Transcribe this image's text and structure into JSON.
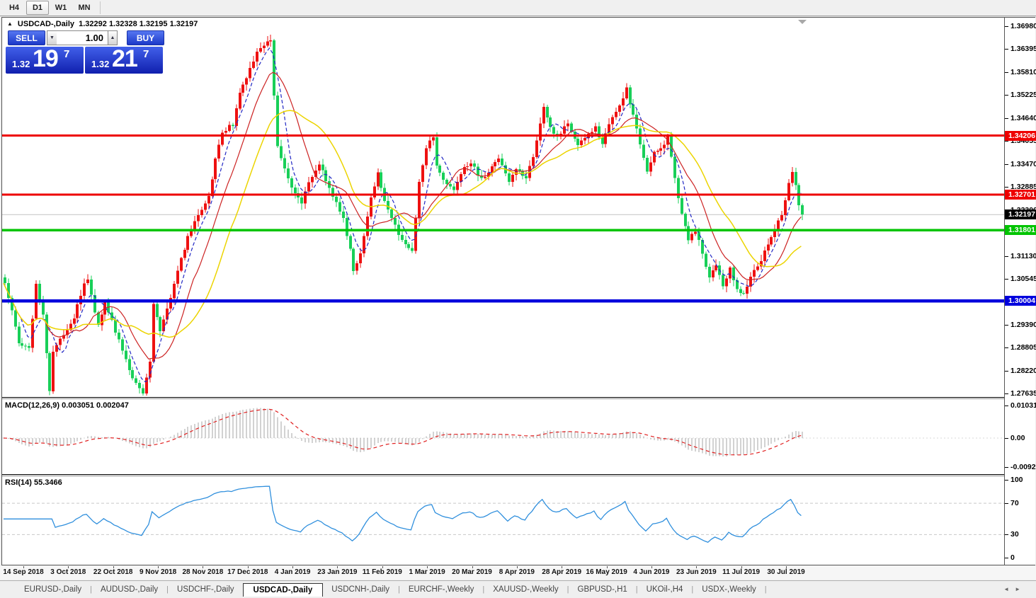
{
  "toolbar": {
    "timeframes": [
      {
        "label": "H4",
        "active": false
      },
      {
        "label": "D1",
        "active": true
      },
      {
        "label": "W1",
        "active": false
      },
      {
        "label": "MN",
        "active": false
      }
    ]
  },
  "chart": {
    "title": "USDCAD-,Daily",
    "ohlc_text": "1.32292 1.32328 1.32195 1.32197"
  },
  "trade_panel": {
    "sell_label": "SELL",
    "buy_label": "BUY",
    "volume": "1.00",
    "sell_price": {
      "prefix": "1.32",
      "big": "19",
      "sup": "7"
    },
    "buy_price": {
      "prefix": "1.32",
      "big": "21",
      "sup": "7"
    }
  },
  "price_axis": {
    "labels": [
      "1.36980",
      "1.36395",
      "1.35810",
      "1.35225",
      "1.34640",
      "1.34055",
      "1.33470",
      "1.32885",
      "1.32300",
      "1.31715",
      "1.31130",
      "1.30545",
      "1.29960",
      "1.29390",
      "1.28805",
      "1.28220",
      "1.27635"
    ],
    "badges": [
      {
        "value": "1.34206",
        "color": "#ee0000"
      },
      {
        "value": "1.32701",
        "color": "#ee0000"
      },
      {
        "value": "1.32197",
        "color": "#000000"
      },
      {
        "value": "1.31801",
        "color": "#00c400"
      },
      {
        "value": "1.30004",
        "color": "#0000dd"
      }
    ]
  },
  "indicators": {
    "macd": {
      "label": "MACD(12,26,9) 0.003051 0.002047",
      "axis": [
        "0.010311",
        "0.00",
        "-0.009203"
      ]
    },
    "rsi": {
      "label": "RSI(14) 55.3466",
      "axis": [
        "100",
        "70",
        "30",
        "0"
      ]
    }
  },
  "time_axis": {
    "labels": [
      "14 Sep 2018",
      "3 Oct 2018",
      "22 Oct 2018",
      "9 Nov 2018",
      "28 Nov 2018",
      "17 Dec 2018",
      "4 Jan 2019",
      "23 Jan 2019",
      "11 Feb 2019",
      "1 Mar 2019",
      "20 Mar 2019",
      "8 Apr 2019",
      "28 Apr 2019",
      "16 May 2019",
      "4 Jun 2019",
      "23 Jun 2019",
      "11 Jul 2019",
      "30 Jul 2019"
    ]
  },
  "tabs": [
    {
      "label": "EURUSD-,Daily",
      "active": false
    },
    {
      "label": "AUDUSD-,Daily",
      "active": false
    },
    {
      "label": "USDCHF-,Daily",
      "active": false
    },
    {
      "label": "USDCAD-,Daily",
      "active": true
    },
    {
      "label": "USDCNH-,Daily",
      "active": false
    },
    {
      "label": "EURCHF-,Weekly",
      "active": false
    },
    {
      "label": "XAUUSD-,Weekly",
      "active": false
    },
    {
      "label": "GBPUSD-,H1",
      "active": false
    },
    {
      "label": "UKOil-,H4",
      "active": false
    },
    {
      "label": "USDX-,Weekly",
      "active": false
    }
  ],
  "chart_data": {
    "type": "candlestick",
    "symbol": "USDCAD-",
    "timeframe": "Daily",
    "ohlc": {
      "open": 1.32292,
      "high": 1.32328,
      "low": 1.32195,
      "close": 1.32197
    },
    "bars": 232,
    "seed": 20190806,
    "bull_color": "#ee1111",
    "bear_color": "#18cf58",
    "y_axis": {
      "min": 1.27635,
      "max": 1.3698
    },
    "current_price": 1.32197,
    "price_path": [
      [
        0,
        1.3045
      ],
      [
        2,
        1.2975
      ],
      [
        4,
        1.289
      ],
      [
        7,
        1.288
      ],
      [
        9,
        1.304
      ],
      [
        11,
        1.2965
      ],
      [
        13,
        1.2775
      ],
      [
        14,
        1.287
      ],
      [
        17,
        1.2915
      ],
      [
        20,
        1.296
      ],
      [
        23,
        1.304
      ],
      [
        24,
        1.3055
      ],
      [
        27,
        1.2935
      ],
      [
        29,
        1.3
      ],
      [
        31,
        1.295
      ],
      [
        34,
        1.287
      ],
      [
        37,
        1.28
      ],
      [
        39,
        1.278
      ],
      [
        40,
        1.2765
      ],
      [
        42,
        1.285
      ],
      [
        43,
        1.299
      ],
      [
        45,
        1.292
      ],
      [
        48,
        1.301
      ],
      [
        50,
        1.308
      ],
      [
        53,
        1.316
      ],
      [
        56,
        1.322
      ],
      [
        59,
        1.327
      ],
      [
        61,
        1.336
      ],
      [
        63,
        1.343
      ],
      [
        66,
        1.345
      ],
      [
        68,
        1.353
      ],
      [
        71,
        1.359
      ],
      [
        73,
        1.363
      ],
      [
        75,
        1.3655
      ],
      [
        77,
        1.366
      ],
      [
        78,
        1.352
      ],
      [
        79,
        1.339
      ],
      [
        81,
        1.334
      ],
      [
        83,
        1.329
      ],
      [
        86,
        1.325
      ],
      [
        88,
        1.33
      ],
      [
        91,
        1.335
      ],
      [
        94,
        1.329
      ],
      [
        98,
        1.321
      ],
      [
        100,
        1.313
      ],
      [
        101,
        1.3075
      ],
      [
        103,
        1.312
      ],
      [
        106,
        1.326
      ],
      [
        108,
        1.3325
      ],
      [
        110,
        1.325
      ],
      [
        113,
        1.319
      ],
      [
        115,
        1.315
      ],
      [
        118,
        1.313
      ],
      [
        120,
        1.33
      ],
      [
        122,
        1.339
      ],
      [
        124,
        1.342
      ],
      [
        125,
        1.334
      ],
      [
        128,
        1.33
      ],
      [
        130,
        1.328
      ],
      [
        133,
        1.334
      ],
      [
        135,
        1.335
      ],
      [
        138,
        1.331
      ],
      [
        141,
        1.334
      ],
      [
        143,
        1.336
      ],
      [
        146,
        1.33
      ],
      [
        148,
        1.334
      ],
      [
        151,
        1.331
      ],
      [
        153,
        1.337
      ],
      [
        156,
        1.349
      ],
      [
        158,
        1.344
      ],
      [
        160,
        1.342
      ],
      [
        163,
        1.345
      ],
      [
        166,
        1.34
      ],
      [
        168,
        1.342
      ],
      [
        171,
        1.344
      ],
      [
        173,
        1.34
      ],
      [
        175,
        1.345
      ],
      [
        178,
        1.35
      ],
      [
        180,
        1.354
      ],
      [
        182,
        1.347
      ],
      [
        184,
        1.34
      ],
      [
        186,
        1.333
      ],
      [
        188,
        1.338
      ],
      [
        191,
        1.34
      ],
      [
        192,
        1.342
      ],
      [
        194,
        1.331
      ],
      [
        196,
        1.322
      ],
      [
        198,
        1.315
      ],
      [
        200,
        1.318
      ],
      [
        202,
        1.312
      ],
      [
        204,
        1.306
      ],
      [
        206,
        1.309
      ],
      [
        208,
        1.304
      ],
      [
        210,
        1.308
      ],
      [
        212,
        1.303
      ],
      [
        214,
        1.302
      ],
      [
        216,
        1.306
      ],
      [
        218,
        1.309
      ],
      [
        221,
        1.314
      ],
      [
        223,
        1.318
      ],
      [
        225,
        1.322
      ],
      [
        226,
        1.326
      ],
      [
        228,
        1.333
      ],
      [
        229,
        1.329
      ],
      [
        230,
        1.324
      ],
      [
        231,
        1.32197
      ]
    ],
    "levels": [
      {
        "price": 1.34206,
        "color": "#ee0000",
        "width": 3
      },
      {
        "price": 1.32701,
        "color": "#ee0000",
        "width": 3
      },
      {
        "price": 1.31801,
        "color": "#00c400",
        "width": 3.5
      },
      {
        "price": 1.30004,
        "color": "#0000dd",
        "width": 4.5
      }
    ],
    "moving_averages": [
      {
        "kind": "sma",
        "period": 6,
        "color": "#2228c4",
        "dash": "5,3",
        "width": 1.2
      },
      {
        "kind": "sma",
        "period": 13,
        "color": "#cc2222",
        "dash": "",
        "width": 1.2
      },
      {
        "kind": "sma",
        "period": 24,
        "color": "#ecd400",
        "dash": "",
        "width": 1.5
      }
    ],
    "macd": {
      "fast": 12,
      "slow": 26,
      "signal": 9,
      "value": 0.003051,
      "signal_value": 0.002047,
      "peak": 0.0095,
      "hist_color": "#a6a6a6",
      "signal_color": "#e02020"
    },
    "rsi": {
      "period": 14,
      "value": 55.3466,
      "levels": [
        70,
        30
      ],
      "color": "#2f8fdd"
    }
  }
}
